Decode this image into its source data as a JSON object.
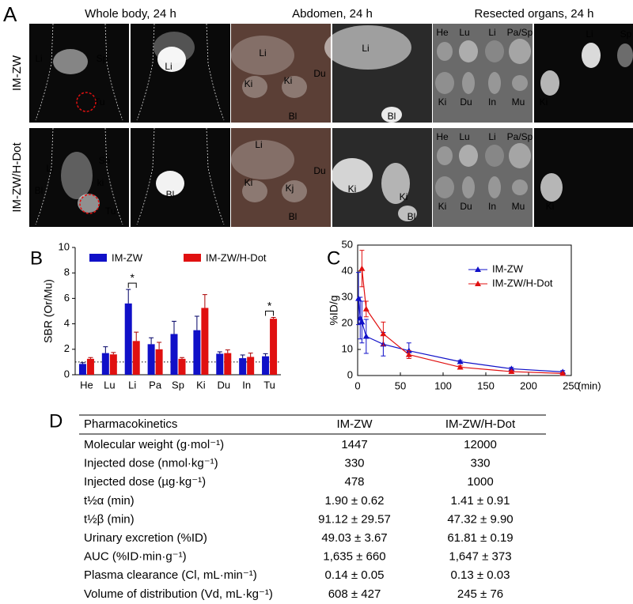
{
  "panel_a": {
    "label": "A",
    "column_headers": [
      "Whole body, 24 h",
      "Abdomen, 24 h",
      "Resected organs, 24 h"
    ],
    "rows": [
      {
        "label": "IM-ZW",
        "images": [
          {
            "labels": [
              "Li",
              "Sp",
              "Tu"
            ]
          },
          {
            "labels": [
              "Li"
            ]
          },
          {
            "labels": [
              "Li",
              "Du",
              "Ki",
              "Ki",
              "Bl"
            ]
          },
          {
            "labels": [
              "Li",
              "Bl"
            ]
          },
          {
            "labels": [
              "He",
              "Lu",
              "Li",
              "Pa/Sp",
              "Ki",
              "Du",
              "In",
              "Mu"
            ]
          },
          {
            "labels": [
              "Li",
              "Sp",
              "Ki"
            ]
          }
        ]
      },
      {
        "label": "IM-ZW/H-Dot",
        "images": [
          {
            "labels": [
              "Li",
              "Sp",
              "ki",
              "Bl",
              "Tu"
            ]
          },
          {
            "labels": [
              "Bl"
            ]
          },
          {
            "labels": [
              "Li",
              "Du",
              "Ki",
              "Kj",
              "Bl"
            ]
          },
          {
            "labels": [
              "Ki",
              "Ki",
              "Bl"
            ]
          },
          {
            "labels": [
              "He",
              "Lu",
              "Li",
              "Pa/Sp",
              "Ki",
              "Du",
              "In",
              "Mu"
            ]
          },
          {
            "labels": [
              "Ki"
            ]
          }
        ]
      }
    ]
  },
  "chart_data": [
    {
      "type": "bar",
      "panel_label": "B",
      "ylabel": "SBR (Or/Mu)",
      "categories": [
        "He",
        "Lu",
        "Li",
        "Pa",
        "Sp",
        "Ki",
        "Du",
        "In",
        "Tu"
      ],
      "series": [
        {
          "name": "IM-ZW",
          "color": "#1010c8",
          "values": [
            0.85,
            1.7,
            5.6,
            2.4,
            3.2,
            3.5,
            1.65,
            1.3,
            1.45
          ],
          "errors": [
            0.1,
            0.5,
            1.1,
            0.5,
            1.0,
            1.1,
            0.15,
            0.25,
            0.2
          ]
        },
        {
          "name": "IM-ZW/H-Dot",
          "color": "#e01010",
          "values": [
            1.25,
            1.6,
            2.65,
            2.0,
            1.25,
            5.25,
            1.7,
            1.4,
            4.4
          ],
          "errors": [
            0.1,
            0.15,
            0.7,
            0.55,
            0.1,
            1.05,
            0.25,
            0.3,
            0.1
          ]
        }
      ],
      "reference_line": 1,
      "annotations": [
        {
          "text": "*",
          "category": "Li"
        },
        {
          "text": "*",
          "category": "Tu"
        }
      ],
      "ylim": [
        0,
        10
      ],
      "yticks": [
        0,
        2,
        4,
        6,
        8,
        10
      ],
      "legend": "top"
    },
    {
      "type": "line",
      "panel_label": "C",
      "ylabel": "%ID/g",
      "xlabel": "(min)",
      "series": [
        {
          "name": "IM-ZW",
          "color": "#1010c8",
          "x": [
            1,
            3,
            5,
            10,
            30,
            60,
            120,
            180,
            240
          ],
          "values": [
            29.5,
            22,
            20.5,
            15,
            12,
            9.5,
            5.3,
            2.6,
            1.4
          ],
          "errors": [
            10,
            8,
            8,
            6.5,
            4.5,
            3,
            0.5,
            0.5,
            0.5
          ]
        },
        {
          "name": "IM-ZW/H-Dot",
          "color": "#e01010",
          "x": [
            5,
            10,
            30,
            60,
            120,
            180,
            240
          ],
          "values": [
            41,
            25.5,
            16,
            8,
            3.2,
            1.5,
            0.8
          ],
          "errors": [
            7,
            3,
            4.5,
            1.5,
            0.5,
            0.3,
            0.3
          ]
        }
      ],
      "xlim": [
        0,
        250
      ],
      "xticks": [
        0,
        50,
        100,
        150,
        200,
        250
      ],
      "ylim": [
        0,
        50
      ],
      "yticks": [
        0,
        10,
        20,
        30,
        40,
        50
      ],
      "legend": "upper right"
    }
  ],
  "panel_d": {
    "label": "D",
    "table": {
      "header": [
        "Pharmacokinetics",
        "IM-ZW",
        "IM-ZW/H-Dot"
      ],
      "rows": [
        [
          "Molecular weight (g·mol⁻¹)",
          "1447",
          "12000"
        ],
        [
          "Injected dose (nmol·kg⁻¹)",
          "330",
          "330"
        ],
        [
          "Injected dose (µg·kg⁻¹)",
          "478",
          "1000"
        ],
        [
          "t½α (min)",
          "1.90 ± 0.62",
          "1.41 ± 0.91"
        ],
        [
          "t½β (min)",
          "91.12 ± 29.57",
          "47.32 ± 9.90"
        ],
        [
          "Urinary excretion (%ID)",
          "49.03 ± 3.67",
          "61.81 ± 0.19"
        ],
        [
          "AUC (%ID·min·g⁻¹)",
          "1,635 ± 660",
          "1,647 ± 373"
        ],
        [
          "Plasma clearance (Cl, mL·min⁻¹)",
          "0.14 ± 0.05",
          "0.13 ± 0.03"
        ],
        [
          "Volume of distribution (Vd, mL·kg⁻¹)",
          "608 ± 427",
          "245 ± 76"
        ]
      ]
    }
  }
}
